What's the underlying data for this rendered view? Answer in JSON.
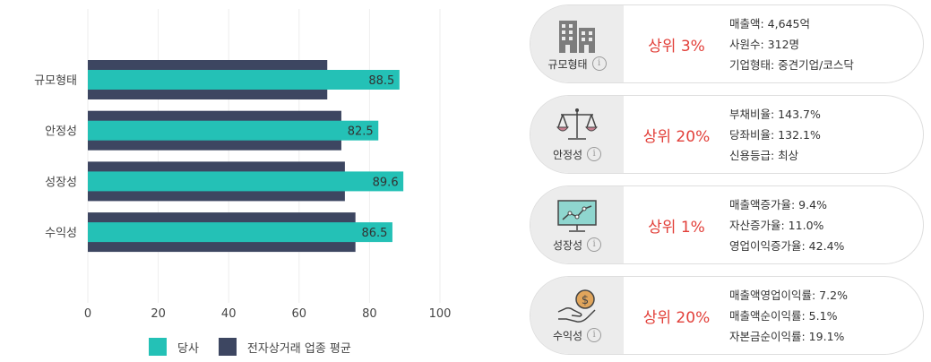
{
  "chart_data": {
    "type": "bar",
    "orientation": "horizontal",
    "categories": [
      "규모형태",
      "안정성",
      "성장성",
      "수익성"
    ],
    "series": [
      {
        "name": "당사",
        "color": "#24c1b6",
        "values": [
          88.5,
          82.5,
          89.6,
          86.5
        ]
      },
      {
        "name": "전자상거래 업종 평균",
        "color": "#3d4661",
        "values": [
          68,
          72,
          73,
          76
        ]
      }
    ],
    "xticks": [
      "0",
      "20",
      "40",
      "60",
      "80",
      "100"
    ],
    "xlim": [
      0,
      100
    ],
    "grid": true,
    "legend_position": "bottom"
  },
  "cards": [
    {
      "category": "규모형태",
      "icon": "building-icon",
      "rank": "상위 3%",
      "stats": [
        "매출액: 4,645억",
        "사원수: 312명",
        "기업형태: 중견기업/코스닥"
      ]
    },
    {
      "category": "안정성",
      "icon": "scale-icon",
      "rank": "상위 20%",
      "stats": [
        "부채비율: 143.7%",
        "당좌비율: 132.1%",
        "신용등급: 최상"
      ]
    },
    {
      "category": "성장성",
      "icon": "growth-monitor-icon",
      "rank": "상위 1%",
      "stats": [
        "매출액증가율: 9.4%",
        "자산증가율: 11.0%",
        "영업이익증가율: 42.4%"
      ]
    },
    {
      "category": "수익성",
      "icon": "money-hand-icon",
      "rank": "상위 20%",
      "stats": [
        "매출액영업이익률: 7.2%",
        "매출액순이익률: 5.1%",
        "자본금순이익률: 19.1%"
      ]
    }
  ],
  "info_symbol": "i"
}
